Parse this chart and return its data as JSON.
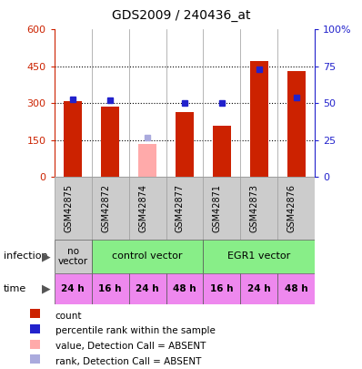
{
  "title": "GDS2009 / 240436_at",
  "samples": [
    "GSM42875",
    "GSM42872",
    "GSM42874",
    "GSM42877",
    "GSM42871",
    "GSM42873",
    "GSM42876"
  ],
  "bar_values": [
    310,
    285,
    135,
    265,
    210,
    470,
    430
  ],
  "bar_absent": [
    false,
    false,
    true,
    false,
    false,
    false,
    false
  ],
  "rank_values": [
    53,
    52,
    27,
    50,
    50,
    73,
    54
  ],
  "rank_absent": [
    false,
    false,
    true,
    false,
    false,
    false,
    false
  ],
  "ylim_left": [
    0,
    600
  ],
  "ylim_right": [
    0,
    100
  ],
  "yticks_left": [
    0,
    150,
    300,
    450,
    600
  ],
  "yticks_right": [
    0,
    25,
    50,
    75,
    100
  ],
  "ytick_labels_right": [
    "0",
    "25",
    "50",
    "75",
    "100%"
  ],
  "time_labels": [
    "24 h",
    "16 h",
    "24 h",
    "48 h",
    "16 h",
    "24 h",
    "48 h"
  ],
  "time_color": "#ee88ee",
  "bar_color_normal": "#cc2200",
  "bar_color_absent": "#ffaaaa",
  "rank_color_normal": "#2222cc",
  "rank_color_absent": "#aaaadd",
  "sample_label_bg": "#cccccc",
  "no_vector_color": "#cccccc",
  "vector_color": "#88ee88",
  "legend_items": [
    {
      "color": "#cc2200",
      "label": "count"
    },
    {
      "color": "#2222cc",
      "label": "percentile rank within the sample"
    },
    {
      "color": "#ffaaaa",
      "label": "value, Detection Call = ABSENT"
    },
    {
      "color": "#aaaadd",
      "label": "rank, Detection Call = ABSENT"
    }
  ],
  "infection_label": "infection",
  "time_label": "time",
  "left_axis_color": "#cc2200",
  "right_axis_color": "#2222cc",
  "chart_bg": "#f0f0f0"
}
